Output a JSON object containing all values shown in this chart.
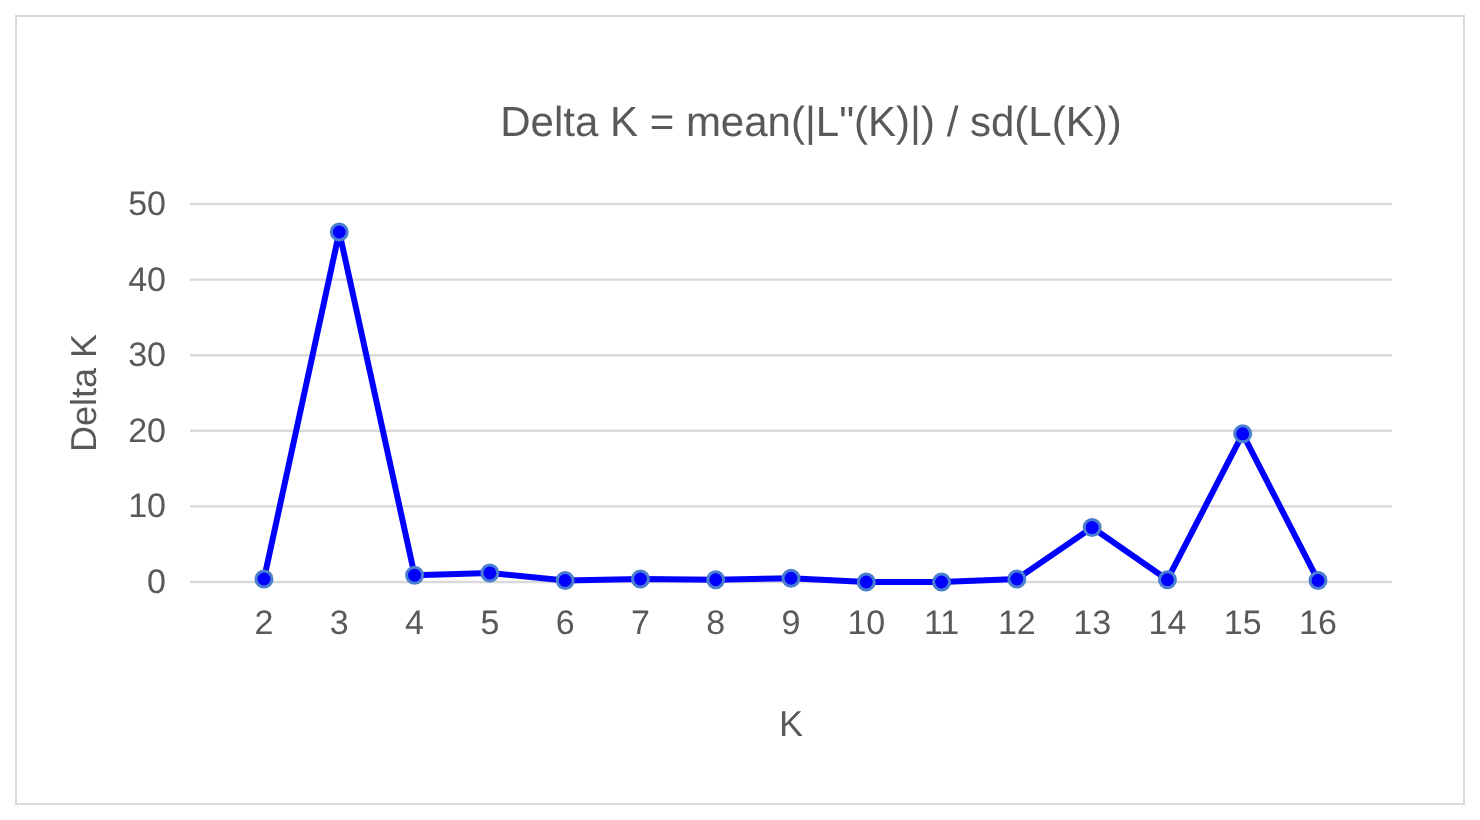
{
  "chart_data": {
    "type": "line",
    "title": "Delta K = mean(|L\"(K)|) / sd(L(K))",
    "xlabel": "K",
    "ylabel": "Delta K",
    "categories": [
      "2",
      "3",
      "4",
      "5",
      "6",
      "7",
      "8",
      "9",
      "10",
      "11",
      "12",
      "13",
      "14",
      "15",
      "16"
    ],
    "series": [
      {
        "color": "#0000ff",
        "values": [
          0.4,
          46.3,
          0.9,
          1.2,
          0.2,
          0.4,
          0.3,
          0.5,
          0,
          0,
          0.4,
          7.2,
          0.3,
          19.6,
          0.2
        ]
      }
    ],
    "ylim": [
      0,
      50
    ],
    "yticks": [
      0,
      10,
      20,
      30,
      40,
      50
    ],
    "grid": "y",
    "marker": "circle",
    "line_style": "solid",
    "legend": false
  }
}
